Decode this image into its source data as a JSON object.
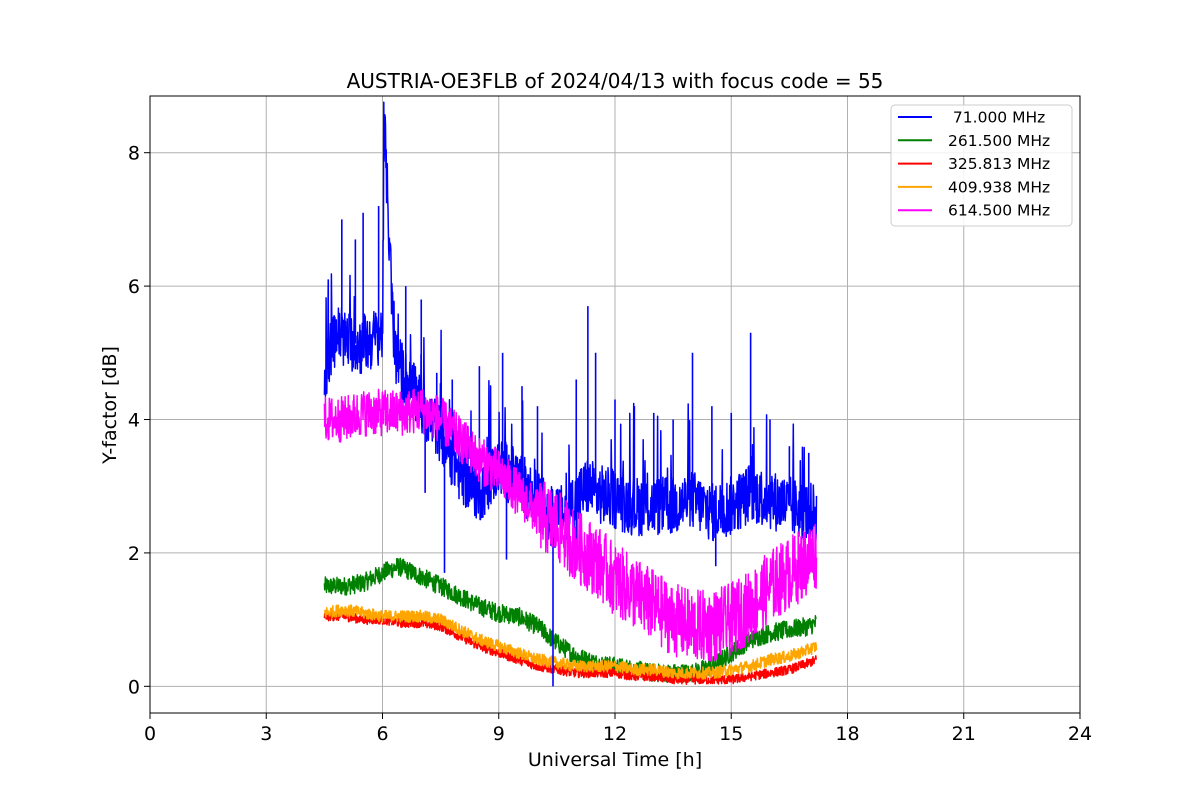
{
  "chart_data": {
    "type": "line",
    "title": "AUSTRIA-OE3FLB of 2024/04/13 with focus code = 55",
    "xlabel": "Universal Time [h]",
    "ylabel": "Y-factor [dB]",
    "xlim": [
      0,
      24
    ],
    "ylim": [
      -0.4,
      8.85
    ],
    "x_ticks": [
      0,
      3,
      6,
      9,
      12,
      15,
      18,
      21,
      24
    ],
    "y_ticks": [
      0,
      2,
      4,
      6,
      8
    ],
    "grid": true,
    "legend_position": "top-right",
    "series": [
      {
        "name": " 71.000 MHz",
        "color": "#0000ff",
        "x": [
          4.5,
          4.8,
          5.0,
          5.5,
          6.0,
          6.05,
          6.3,
          6.6,
          7.0,
          7.5,
          8.0,
          8.5,
          9.0,
          9.5,
          10.0,
          10.4,
          10.7,
          11.0,
          11.3,
          11.5,
          12.0,
          12.5,
          13.0,
          13.5,
          14.0,
          14.5,
          15.0,
          15.5,
          16.0,
          16.5,
          17.0,
          17.2
        ],
        "y": [
          4.7,
          5.3,
          5.2,
          5.1,
          5.3,
          8.4,
          5.0,
          4.6,
          4.2,
          3.8,
          3.2,
          2.9,
          3.3,
          3.1,
          2.8,
          2.5,
          2.6,
          2.8,
          3.0,
          2.9,
          2.8,
          2.7,
          2.7,
          2.7,
          2.8,
          2.6,
          2.7,
          2.9,
          2.8,
          2.7,
          2.6,
          2.6
        ],
        "spikes": [
          {
            "x": 4.6,
            "y": 6.1
          },
          {
            "x": 4.95,
            "y": 7.0
          },
          {
            "x": 5.3,
            "y": 6.7
          },
          {
            "x": 5.5,
            "y": 7.1
          },
          {
            "x": 5.9,
            "y": 7.2
          },
          {
            "x": 6.05,
            "y": 8.4
          },
          {
            "x": 6.6,
            "y": 6.0
          },
          {
            "x": 7.0,
            "y": 5.8
          },
          {
            "x": 7.4,
            "y": 4.7
          },
          {
            "x": 7.8,
            "y": 4.6
          },
          {
            "x": 8.5,
            "y": 4.8
          },
          {
            "x": 9.1,
            "y": 5.0
          },
          {
            "x": 9.6,
            "y": 4.5
          },
          {
            "x": 10.0,
            "y": 4.2
          },
          {
            "x": 11.0,
            "y": 4.6
          },
          {
            "x": 11.3,
            "y": 5.7
          },
          {
            "x": 11.5,
            "y": 5.0
          },
          {
            "x": 12.0,
            "y": 4.3
          },
          {
            "x": 12.5,
            "y": 4.2
          },
          {
            "x": 13.0,
            "y": 4.1
          },
          {
            "x": 13.5,
            "y": 4.0
          },
          {
            "x": 14.0,
            "y": 5.0
          },
          {
            "x": 14.5,
            "y": 4.2
          },
          {
            "x": 15.0,
            "y": 4.1
          },
          {
            "x": 15.5,
            "y": 5.3
          },
          {
            "x": 16.0,
            "y": 4.0
          },
          {
            "x": 16.5,
            "y": 3.6
          },
          {
            "x": 17.0,
            "y": 3.5
          }
        ],
        "dips": [
          {
            "x": 7.6,
            "y": 1.7
          },
          {
            "x": 7.1,
            "y": 2.9
          },
          {
            "x": 9.2,
            "y": 1.9
          },
          {
            "x": 10.4,
            "y": 0.0
          },
          {
            "x": 11.0,
            "y": 2.1
          },
          {
            "x": 14.6,
            "y": 1.8
          }
        ]
      },
      {
        "name": "261.500 MHz",
        "color": "#008000",
        "x": [
          4.5,
          5.0,
          5.5,
          6.0,
          6.4,
          6.8,
          7.5,
          8.0,
          8.5,
          9.0,
          9.5,
          10.0,
          10.5,
          11.0,
          11.5,
          12.0,
          12.5,
          13.0,
          13.5,
          14.0,
          14.5,
          15.0,
          15.5,
          16.0,
          16.5,
          17.0,
          17.2
        ],
        "y": [
          1.5,
          1.5,
          1.55,
          1.7,
          1.8,
          1.7,
          1.5,
          1.35,
          1.2,
          1.1,
          1.05,
          0.9,
          0.65,
          0.45,
          0.35,
          0.3,
          0.25,
          0.2,
          0.2,
          0.2,
          0.3,
          0.5,
          0.7,
          0.8,
          0.85,
          0.9,
          0.95
        ]
      },
      {
        "name": "325.813 MHz",
        "color": "#ff0000",
        "x": [
          4.5,
          5.0,
          5.5,
          6.0,
          6.5,
          7.0,
          7.5,
          8.0,
          8.5,
          9.0,
          9.5,
          10.0,
          10.5,
          11.0,
          11.5,
          12.0,
          12.5,
          13.0,
          13.5,
          14.0,
          14.5,
          15.0,
          15.5,
          16.0,
          16.5,
          17.0,
          17.2
        ],
        "y": [
          1.05,
          1.05,
          1.0,
          1.0,
          0.95,
          0.95,
          0.9,
          0.75,
          0.6,
          0.5,
          0.4,
          0.3,
          0.25,
          0.2,
          0.2,
          0.2,
          0.15,
          0.15,
          0.1,
          0.1,
          0.1,
          0.1,
          0.15,
          0.2,
          0.25,
          0.35,
          0.4
        ]
      },
      {
        "name": "409.938 MHz",
        "color": "#ffa500",
        "x": [
          4.5,
          5.0,
          5.5,
          6.0,
          6.5,
          7.0,
          7.5,
          8.0,
          8.5,
          9.0,
          9.5,
          10.0,
          10.5,
          11.0,
          11.5,
          12.0,
          12.5,
          13.0,
          13.5,
          14.0,
          14.5,
          15.0,
          15.5,
          16.0,
          16.5,
          17.0,
          17.2
        ],
        "y": [
          1.1,
          1.15,
          1.1,
          1.05,
          1.05,
          1.05,
          1.0,
          0.85,
          0.7,
          0.6,
          0.5,
          0.4,
          0.35,
          0.3,
          0.3,
          0.3,
          0.25,
          0.25,
          0.2,
          0.2,
          0.2,
          0.25,
          0.3,
          0.4,
          0.45,
          0.55,
          0.6
        ]
      },
      {
        "name": "614.500 MHz",
        "color": "#ff00ff",
        "x": [
          4.5,
          5.0,
          5.5,
          6.0,
          6.5,
          7.0,
          7.5,
          8.0,
          8.5,
          9.0,
          9.5,
          10.0,
          10.5,
          11.0,
          11.5,
          12.0,
          12.5,
          13.0,
          13.5,
          14.0,
          14.5,
          15.0,
          15.5,
          16.0,
          16.5,
          17.0,
          17.2
        ],
        "y": [
          4.0,
          4.0,
          4.1,
          4.1,
          4.1,
          4.15,
          4.0,
          3.7,
          3.4,
          3.2,
          2.9,
          2.6,
          2.4,
          2.1,
          1.9,
          1.6,
          1.4,
          1.2,
          1.0,
          0.9,
          0.9,
          1.0,
          1.2,
          1.5,
          1.7,
          1.9,
          2.0
        ]
      }
    ]
  }
}
